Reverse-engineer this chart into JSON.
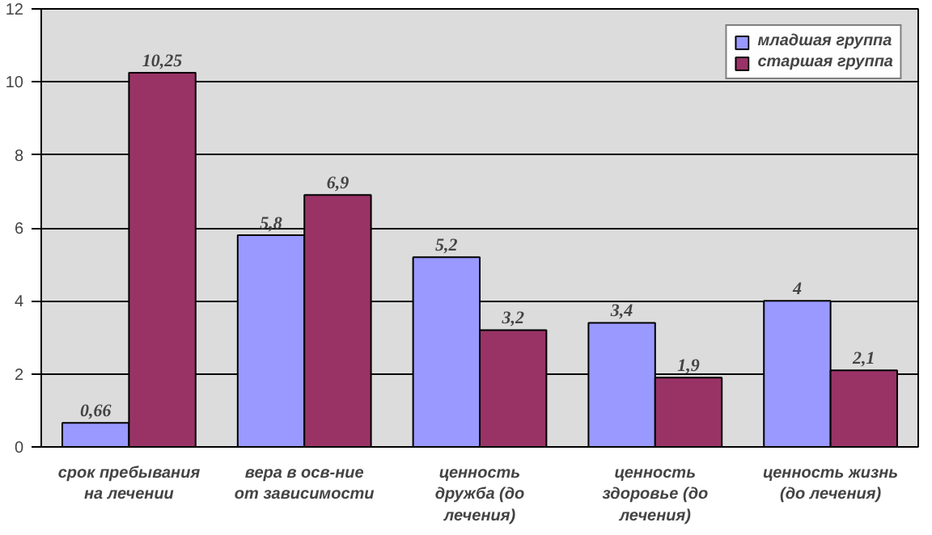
{
  "chart_data": {
    "type": "bar",
    "categories": [
      "срок пребывания\nна лечении",
      "вера в осв-ние\nот зависимости",
      "ценность\nдружба (до\nлечения)",
      "ценность\nздоровье (до\nлечения)",
      "ценность жизнь\n(до лечения)"
    ],
    "series": [
      {
        "name": "младшая группа",
        "color": "#9999ff",
        "values": [
          0.66,
          5.8,
          5.2,
          3.4,
          4
        ],
        "value_labels": [
          "0,66",
          "5,8",
          "5,2",
          "3,4",
          "4"
        ]
      },
      {
        "name": "старшая группа",
        "color": "#993366",
        "values": [
          10.25,
          6.9,
          3.2,
          1.9,
          2.1
        ],
        "value_labels": [
          "10,25",
          "6,9",
          "3,2",
          "1,9",
          "2,1"
        ]
      }
    ],
    "ylim": [
      0,
      12
    ],
    "yticks": [
      0,
      2,
      4,
      6,
      8,
      10,
      12
    ],
    "grid": "y",
    "legend": "top right"
  }
}
